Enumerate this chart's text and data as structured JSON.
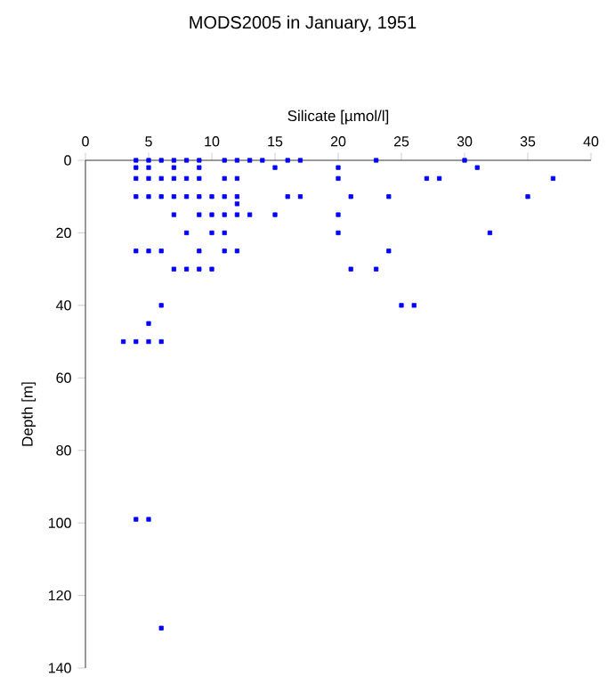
{
  "chart_data": {
    "type": "scatter",
    "title": "MODS2005 in January, 1951",
    "xlabel": "Silicate [µmol/l]",
    "ylabel": "Depth [m]",
    "xlim": [
      0,
      40
    ],
    "xticks": [
      0,
      5,
      10,
      15,
      20,
      25,
      30,
      35,
      40
    ],
    "ylim": [
      140,
      0
    ],
    "yticks": [
      0,
      20,
      40,
      60,
      80,
      100,
      120,
      140
    ],
    "marker": "square",
    "series": [
      {
        "color": "#0000ff",
        "x": [
          4,
          5,
          6,
          7,
          8,
          9,
          11,
          12,
          13,
          14,
          16,
          17,
          23,
          30,
          4,
          5,
          7,
          9,
          15,
          20,
          31,
          4,
          5,
          6,
          7,
          8,
          9,
          11,
          12,
          20,
          27,
          28,
          37,
          4,
          5,
          6,
          7,
          8,
          9,
          10,
          11,
          12,
          16,
          17,
          21,
          24,
          35,
          12,
          7,
          9,
          10,
          11,
          12,
          13,
          15,
          20,
          8,
          10,
          11,
          20,
          32,
          4,
          5,
          6,
          9,
          11,
          12,
          24,
          7,
          8,
          9,
          10,
          21,
          23,
          6,
          25,
          26,
          5,
          3,
          4,
          5,
          6,
          4,
          5,
          6
        ],
        "values": [
          0,
          0,
          0,
          0,
          0,
          0,
          0,
          0,
          0,
          0,
          0,
          0,
          0,
          0,
          2,
          2,
          2,
          2,
          2,
          2,
          2,
          5,
          5,
          5,
          5,
          5,
          5,
          5,
          5,
          5,
          5,
          5,
          5,
          10,
          10,
          10,
          10,
          10,
          10,
          10,
          10,
          10,
          10,
          10,
          10,
          10,
          10,
          12,
          15,
          15,
          15,
          15,
          15,
          15,
          15,
          15,
          20,
          20,
          20,
          20,
          20,
          25,
          25,
          25,
          25,
          25,
          25,
          25,
          30,
          30,
          30,
          30,
          30,
          30,
          40,
          40,
          40,
          45,
          50,
          50,
          50,
          50,
          99,
          99,
          129
        ]
      }
    ]
  }
}
